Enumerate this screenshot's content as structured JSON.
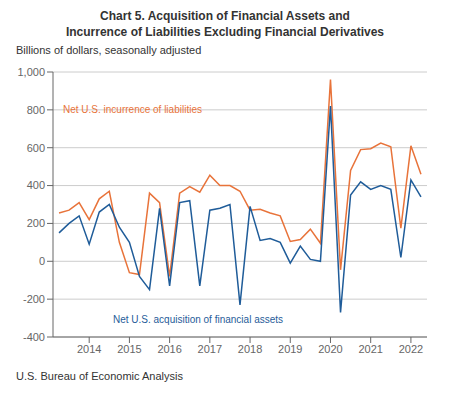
{
  "chart_data": {
    "type": "line",
    "title": "Chart 5. Acquisition of Financial Assets and\nIncurrence of Liabilities Excluding Financial Derivatives",
    "subtitle": "Billions of dollars, seasonally adjusted",
    "source": "U.S. Bureau of Economic Analysis",
    "x": [
      2013.25,
      2013.5,
      2013.75,
      2014.0,
      2014.25,
      2014.5,
      2014.75,
      2015.0,
      2015.25,
      2015.5,
      2015.75,
      2016.0,
      2016.25,
      2016.5,
      2016.75,
      2017.0,
      2017.25,
      2017.5,
      2017.75,
      2018.0,
      2018.25,
      2018.5,
      2018.75,
      2019.0,
      2019.25,
      2019.5,
      2019.75,
      2020.0,
      2020.25,
      2020.5,
      2020.75,
      2021.0,
      2021.25,
      2021.5,
      2021.75,
      2022.0,
      2022.25
    ],
    "series": [
      {
        "name": "Net U.S. incurrence of liabilities",
        "color": "#E8733A",
        "values": [
          255,
          270,
          310,
          220,
          330,
          370,
          100,
          -60,
          -70,
          360,
          310,
          -80,
          360,
          395,
          365,
          455,
          400,
          400,
          370,
          270,
          275,
          255,
          240,
          105,
          115,
          170,
          95,
          960,
          -45,
          480,
          590,
          595,
          625,
          605,
          175,
          610,
          460
        ]
      },
      {
        "name": "Net U.S. acquisition of financial assets",
        "color": "#1F5C99",
        "values": [
          150,
          200,
          240,
          90,
          260,
          300,
          180,
          100,
          -80,
          -150,
          280,
          -130,
          310,
          320,
          -130,
          270,
          280,
          300,
          -230,
          290,
          110,
          120,
          100,
          -10,
          80,
          10,
          0,
          820,
          -270,
          350,
          420,
          380,
          400,
          380,
          20,
          430,
          340
        ]
      }
    ],
    "xlim": [
      2013.1,
      2022.4
    ],
    "xticks": [
      2014,
      2015,
      2016,
      2017,
      2018,
      2019,
      2020,
      2021,
      2022
    ],
    "ylim": [
      -400,
      1000
    ],
    "yticks": [
      -400,
      -200,
      0,
      200,
      400,
      600,
      800,
      {
        "value": 1000,
        "label": "1,000"
      }
    ],
    "grid": true
  }
}
